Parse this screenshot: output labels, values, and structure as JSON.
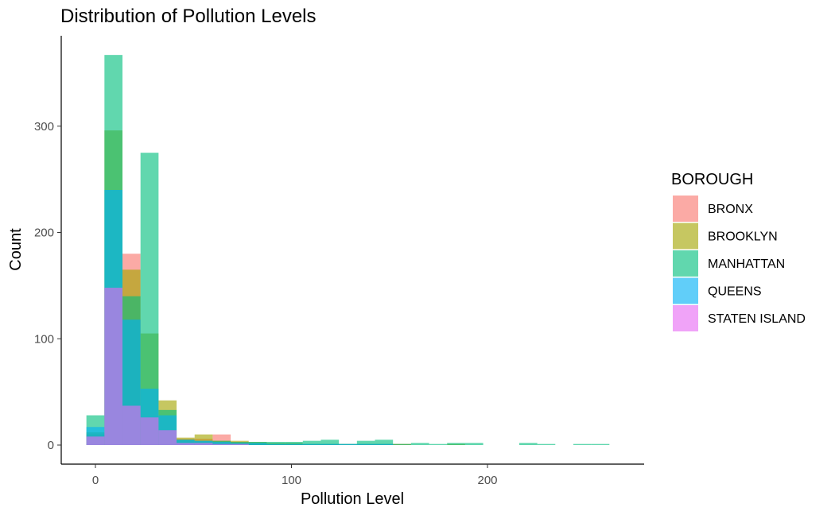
{
  "chart_data": {
    "type": "bar",
    "title": "Distribution of Pollution Levels",
    "xlabel": "Pollution Level",
    "ylabel": "Count",
    "xlim": [
      -5,
      270
    ],
    "ylim": [
      0,
      370
    ],
    "x_ticks": [
      0,
      100,
      200
    ],
    "y_ticks": [
      0,
      100,
      200,
      300
    ],
    "grid": false,
    "bin_width": 9.2,
    "bin_centers": [
      0,
      9.2,
      18.4,
      27.6,
      36.8,
      46,
      55.2,
      64.4,
      73.6,
      82.8,
      92,
      101.2,
      110.4,
      119.6,
      128.8,
      138,
      147.2,
      156.4,
      165.6,
      174.8,
      184,
      193.2,
      202.4,
      211.6,
      220.8,
      230,
      239.2,
      248.4,
      257.6
    ],
    "legend": {
      "title": "BOROUGH",
      "position": "right"
    },
    "series": [
      {
        "name": "BRONX",
        "color": "#F8766D",
        "values": [
          10,
          148,
          180,
          26,
          14,
          6,
          6,
          10,
          3,
          2,
          1,
          1,
          1,
          1,
          1,
          1,
          1,
          1,
          0,
          0,
          0,
          0,
          0,
          0,
          0,
          0,
          0,
          0,
          0
        ]
      },
      {
        "name": "BROOKLYN",
        "color": "#A3A500",
        "values": [
          12,
          296,
          165,
          105,
          42,
          7,
          10,
          4,
          4,
          3,
          2,
          2,
          1,
          1,
          1,
          1,
          1,
          1,
          0,
          0,
          1,
          0,
          0,
          0,
          0,
          0,
          0,
          0,
          0
        ]
      },
      {
        "name": "MANHATTAN",
        "color": "#00BF7D",
        "values": [
          28,
          367,
          140,
          275,
          33,
          5,
          4,
          4,
          3,
          3,
          3,
          3,
          4,
          5,
          1,
          4,
          5,
          1,
          2,
          1,
          2,
          2,
          0,
          0,
          2,
          1,
          0,
          1,
          1
        ]
      },
      {
        "name": "QUEENS",
        "color": "#00B0F6",
        "values": [
          17,
          240,
          118,
          53,
          28,
          5,
          4,
          3,
          2,
          2,
          1,
          1,
          1,
          1,
          1,
          1,
          1,
          0,
          0,
          0,
          0,
          0,
          0,
          0,
          0,
          0,
          0,
          0,
          0
        ]
      },
      {
        "name": "STATEN ISLAND",
        "color": "#E76BF3",
        "values": [
          8,
          148,
          37,
          26,
          14,
          2,
          2,
          1,
          1,
          0,
          0,
          0,
          0,
          0,
          0,
          0,
          0,
          0,
          0,
          0,
          0,
          0,
          0,
          0,
          0,
          0,
          0,
          0,
          0
        ]
      }
    ]
  }
}
